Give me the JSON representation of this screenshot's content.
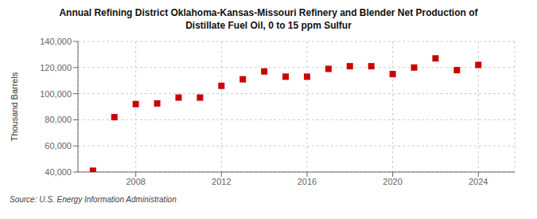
{
  "chart_data": {
    "type": "scatter",
    "title": "Annual Refining District Oklahoma-Kansas-Missouri Refinery and Blender Net Production of\nDistillate Fuel Oil, 0 to 15 ppm Sulfur",
    "ylabel": "Thousand Barrels",
    "annotations": [
      "Source: U.S. Energy Information Administration"
    ],
    "x": [
      2006,
      2007,
      2008,
      2009,
      2010,
      2011,
      2012,
      2013,
      2014,
      2015,
      2016,
      2017,
      2018,
      2019,
      2020,
      2021,
      2022,
      2023,
      2024
    ],
    "values": [
      41000,
      82000,
      92000,
      92500,
      97000,
      97000,
      106000,
      111000,
      117000,
      113000,
      113000,
      119000,
      121000,
      121000,
      115000,
      120000,
      127000,
      118000,
      122000
    ],
    "color": "#cc0000",
    "marker": "square",
    "xlim": [
      2005.3,
      2025.7
    ],
    "xticks": [
      2008,
      2012,
      2016,
      2020,
      2024
    ],
    "ylim": [
      40000,
      140000
    ],
    "yticks": [
      {
        "value": 40000,
        "label": "40,000"
      },
      {
        "value": 60000,
        "label": "60,000"
      },
      {
        "value": 80000,
        "label": "80,000"
      },
      {
        "value": 100000,
        "label": "100,000"
      },
      {
        "value": 120000,
        "label": "120,000"
      },
      {
        "value": 140000,
        "label": "140,000"
      }
    ],
    "grid": true
  }
}
